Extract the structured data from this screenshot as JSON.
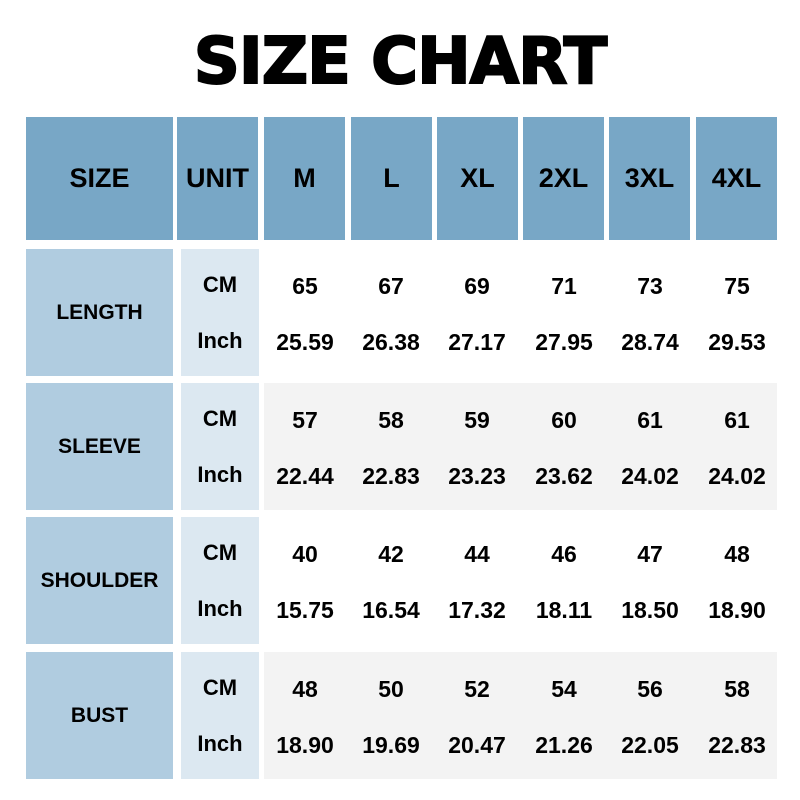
{
  "title": "SIZE CHART",
  "header": [
    "SIZE",
    "UNIT",
    "M",
    "L",
    "XL",
    "2XL",
    "3XL",
    "4XL"
  ],
  "colors": {
    "header": "#78a7c6",
    "row_label": "#b0cce0",
    "unit_cell": "#dce8f1",
    "alt_row": "#f3f3f3"
  },
  "rows": [
    {
      "label": "LENGTH",
      "units": [
        "CM",
        "Inch"
      ],
      "cm": [
        "65",
        "67",
        "69",
        "71",
        "73",
        "75"
      ],
      "inch": [
        "25.59",
        "26.38",
        "27.17",
        "27.95",
        "28.74",
        "29.53"
      ]
    },
    {
      "label": "SLEEVE",
      "units": [
        "CM",
        "Inch"
      ],
      "cm": [
        "57",
        "58",
        "59",
        "60",
        "61",
        "61"
      ],
      "inch": [
        "22.44",
        "22.83",
        "23.23",
        "23.62",
        "24.02",
        "24.02"
      ]
    },
    {
      "label": "SHOULDER",
      "units": [
        "CM",
        "Inch"
      ],
      "cm": [
        "40",
        "42",
        "44",
        "46",
        "47",
        "48"
      ],
      "inch": [
        "15.75",
        "16.54",
        "17.32",
        "18.11",
        "18.50",
        "18.90"
      ]
    },
    {
      "label": "BUST",
      "units": [
        "CM",
        "Inch"
      ],
      "cm": [
        "48",
        "50",
        "52",
        "54",
        "56",
        "58"
      ],
      "inch": [
        "18.90",
        "19.69",
        "20.47",
        "21.26",
        "22.05",
        "22.83"
      ]
    }
  ]
}
